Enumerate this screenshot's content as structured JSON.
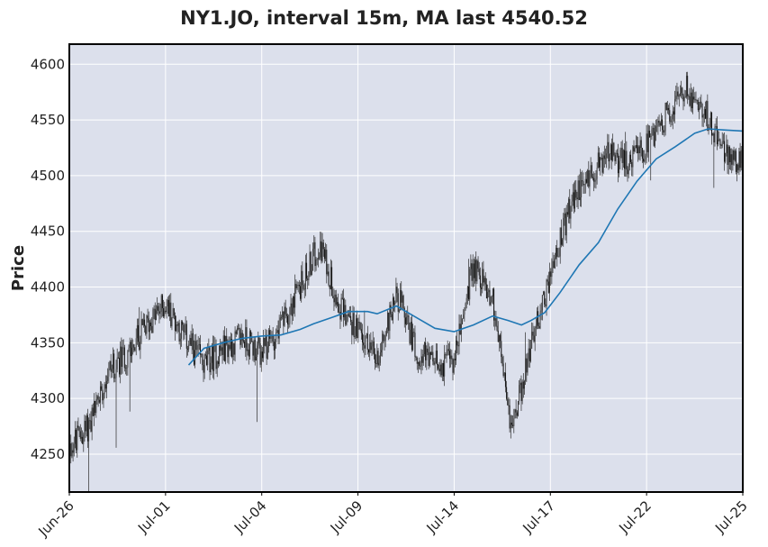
{
  "chart_data": {
    "type": "candlestick",
    "title": "NY1.JO, interval 15m, MA last 4540.52",
    "ylabel": "Price",
    "xlabel": "",
    "ylim": [
      4216,
      4618
    ],
    "y_ticks": [
      4250,
      4300,
      4350,
      4400,
      4450,
      4500,
      4550,
      4600
    ],
    "x_ticks": [
      "Jun-26",
      "Jul-01",
      "Jul-04",
      "Jul-09",
      "Jul-14",
      "Jul-17",
      "Jul-22",
      "Jul-25"
    ],
    "x_tick_positions": [
      0,
      5,
      10,
      15,
      20,
      25,
      30,
      35
    ],
    "x_range": [
      0,
      35
    ],
    "grid": true,
    "ma_last": 4540.52,
    "price_path": [
      [
        0,
        4255
      ],
      [
        1,
        4275
      ],
      [
        2,
        4325
      ],
      [
        3,
        4340
      ],
      [
        4,
        4365
      ],
      [
        5,
        4385
      ],
      [
        6,
        4355
      ],
      [
        7,
        4330
      ],
      [
        8,
        4345
      ],
      [
        9,
        4355
      ],
      [
        10,
        4340
      ],
      [
        11,
        4365
      ],
      [
        12,
        4400
      ],
      [
        13,
        4440
      ],
      [
        14,
        4385
      ],
      [
        15,
        4360
      ],
      [
        16,
        4335
      ],
      [
        17,
        4395
      ],
      [
        18,
        4345
      ],
      [
        19,
        4330
      ],
      [
        20,
        4335
      ],
      [
        21,
        4420
      ],
      [
        22,
        4390
      ],
      [
        23,
        4270
      ],
      [
        24,
        4350
      ],
      [
        25,
        4410
      ],
      [
        26,
        4470
      ],
      [
        27,
        4500
      ],
      [
        28,
        4520
      ],
      [
        29,
        4510
      ],
      [
        30,
        4525
      ],
      [
        31,
        4555
      ],
      [
        32,
        4580
      ],
      [
        33,
        4560
      ],
      [
        34,
        4520
      ],
      [
        35,
        4510
      ]
    ],
    "ma_path": [
      [
        6.2,
        4330
      ],
      [
        7.0,
        4345
      ],
      [
        8.0,
        4350
      ],
      [
        9.0,
        4354
      ],
      [
        10.0,
        4356
      ],
      [
        11.0,
        4357
      ],
      [
        12.0,
        4362
      ],
      [
        12.7,
        4367
      ],
      [
        13.7,
        4373
      ],
      [
        14.5,
        4378
      ],
      [
        15.5,
        4378
      ],
      [
        16.0,
        4376
      ],
      [
        17.0,
        4383
      ],
      [
        18.0,
        4373
      ],
      [
        19.0,
        4363
      ],
      [
        20.0,
        4360
      ],
      [
        21.0,
        4366
      ],
      [
        22.0,
        4374
      ],
      [
        22.8,
        4370
      ],
      [
        23.5,
        4366
      ],
      [
        24.0,
        4370
      ],
      [
        24.7,
        4377
      ],
      [
        25.5,
        4395
      ],
      [
        26.5,
        4420
      ],
      [
        27.5,
        4440
      ],
      [
        28.5,
        4470
      ],
      [
        29.5,
        4495
      ],
      [
        30.5,
        4515
      ],
      [
        31.5,
        4526
      ],
      [
        32.5,
        4538
      ],
      [
        33.2,
        4542
      ],
      [
        34.0,
        4541
      ],
      [
        35.0,
        4540
      ]
    ]
  }
}
